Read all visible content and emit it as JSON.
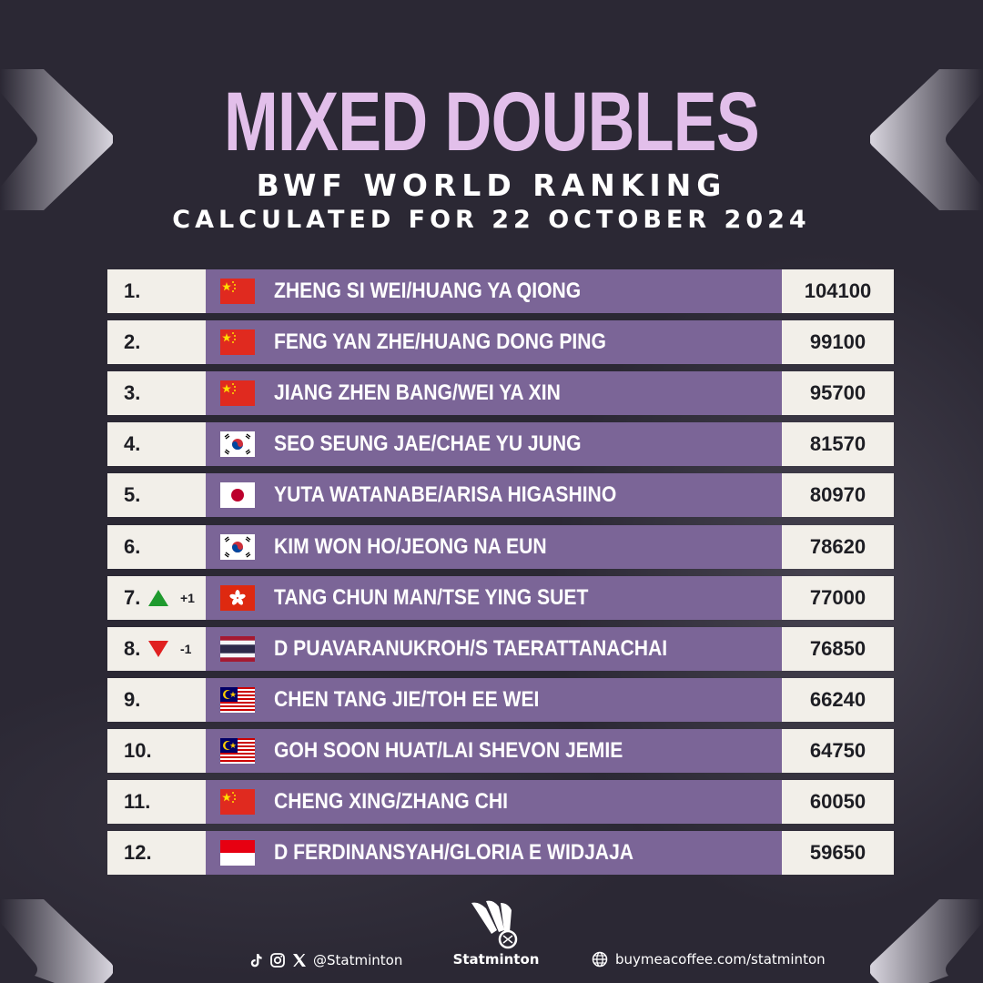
{
  "header": {
    "title": "MIXED DOUBLES",
    "subtitle": "BWF WORLD RANKING",
    "date": "CALCULATED FOR 22 OCTOBER 2024"
  },
  "rankings": [
    {
      "rank": "1.",
      "country": "China",
      "players": "ZHENG SI WEI/HUANG YA QIONG",
      "points": "104100",
      "move": "",
      "move_dir": ""
    },
    {
      "rank": "2.",
      "country": "China",
      "players": "FENG YAN ZHE/HUANG DONG PING",
      "points": "99100",
      "move": "",
      "move_dir": ""
    },
    {
      "rank": "3.",
      "country": "China",
      "players": "JIANG ZHEN BANG/WEI YA XIN",
      "points": "95700",
      "move": "",
      "move_dir": ""
    },
    {
      "rank": "4.",
      "country": "South Korea",
      "players": "SEO SEUNG JAE/CHAE YU JUNG",
      "points": "81570",
      "move": "",
      "move_dir": ""
    },
    {
      "rank": "5.",
      "country": "Japan",
      "players": "YUTA WATANABE/ARISA HIGASHINO",
      "points": "80970",
      "move": "",
      "move_dir": ""
    },
    {
      "rank": "6.",
      "country": "South Korea",
      "players": "KIM WON HO/JEONG NA EUN",
      "points": "78620",
      "move": "",
      "move_dir": ""
    },
    {
      "rank": "7.",
      "country": "Hong Kong",
      "players": "TANG CHUN MAN/TSE YING SUET",
      "points": "77000",
      "move": "+1",
      "move_dir": "up"
    },
    {
      "rank": "8.",
      "country": "Thailand",
      "players": "D PUAVARANUKROH/S TAERATTANACHAI",
      "points": "76850",
      "move": "-1",
      "move_dir": "down"
    },
    {
      "rank": "9.",
      "country": "Malaysia",
      "players": "CHEN TANG JIE/TOH EE WEI",
      "points": "66240",
      "move": "",
      "move_dir": ""
    },
    {
      "rank": "10.",
      "country": "Malaysia",
      "players": "GOH SOON HUAT/LAI SHEVON JEMIE",
      "points": "64750",
      "move": "",
      "move_dir": ""
    },
    {
      "rank": "11.",
      "country": "China",
      "players": "CHENG XING/ZHANG CHI",
      "points": "60050",
      "move": "",
      "move_dir": ""
    },
    {
      "rank": "12.",
      "country": "Indonesia",
      "players": "D FERDINANSYAH/GLORIA E WIDJAJA",
      "points": "59650",
      "move": "",
      "move_dir": ""
    }
  ],
  "colors": {
    "background": "#2b2834",
    "title": "#e2bfea",
    "name_cell": "#7b6597",
    "light_cell": "#f2efe9",
    "move_up": "#1f9a2e",
    "move_down": "#e02020"
  },
  "footer": {
    "icons": [
      "tiktok-icon",
      "instagram-icon",
      "x-icon"
    ],
    "handle": "@Statminton",
    "brand": "Statminton",
    "website": "buymeacoffee.com/statminton",
    "website_icon": "globe-icon"
  }
}
